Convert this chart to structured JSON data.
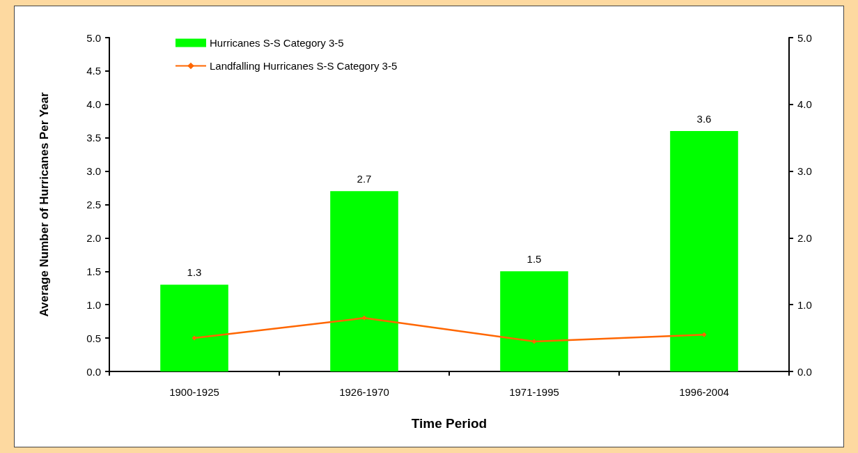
{
  "chart_data": {
    "type": "bar",
    "xlabel": "Time Period",
    "ylabel": "Average Number of Hurricanes Per Year",
    "categories": [
      "1900-1925",
      "1926-1970",
      "1971-1995",
      "1996-2004"
    ],
    "series": [
      {
        "name": "Hurricanes S-S Category 3-5",
        "color": "#00ff00",
        "values": [
          1.3,
          2.7,
          1.5,
          3.6
        ],
        "data_labels": true
      },
      {
        "name": "Landfalling Hurricanes S-S Category 3-5",
        "type": "line",
        "color": "#ff6600",
        "values": [
          0.5,
          0.8,
          0.45,
          0.55
        ],
        "marker": "diamond"
      }
    ],
    "ylim": [
      0,
      5
    ],
    "yticks": [
      {
        "value": 0,
        "label": "0.0"
      },
      {
        "value": 0.5,
        "label": "0.5"
      },
      {
        "value": 1,
        "label": "1.0"
      },
      {
        "value": 1.5,
        "label": "1.5"
      },
      {
        "value": 2,
        "label": "2.0"
      },
      {
        "value": 2.5,
        "label": "2.5"
      },
      {
        "value": 3,
        "label": "3.0"
      },
      {
        "value": 3.5,
        "label": "3.5"
      },
      {
        "value": 4,
        "label": "4.0"
      },
      {
        "value": 4.5,
        "label": "4.5"
      },
      {
        "value": 5,
        "label": "5.0"
      }
    ],
    "y2lim": [
      0,
      5
    ],
    "y2ticks": [
      {
        "value": 0,
        "label": "0.0"
      },
      {
        "value": 1,
        "label": "1.0"
      },
      {
        "value": 2,
        "label": "2.0"
      },
      {
        "value": 3,
        "label": "3.0"
      },
      {
        "value": 4,
        "label": "4.0"
      },
      {
        "value": 5,
        "label": "5.0"
      }
    ],
    "grid": false,
    "legend": "top left"
  }
}
